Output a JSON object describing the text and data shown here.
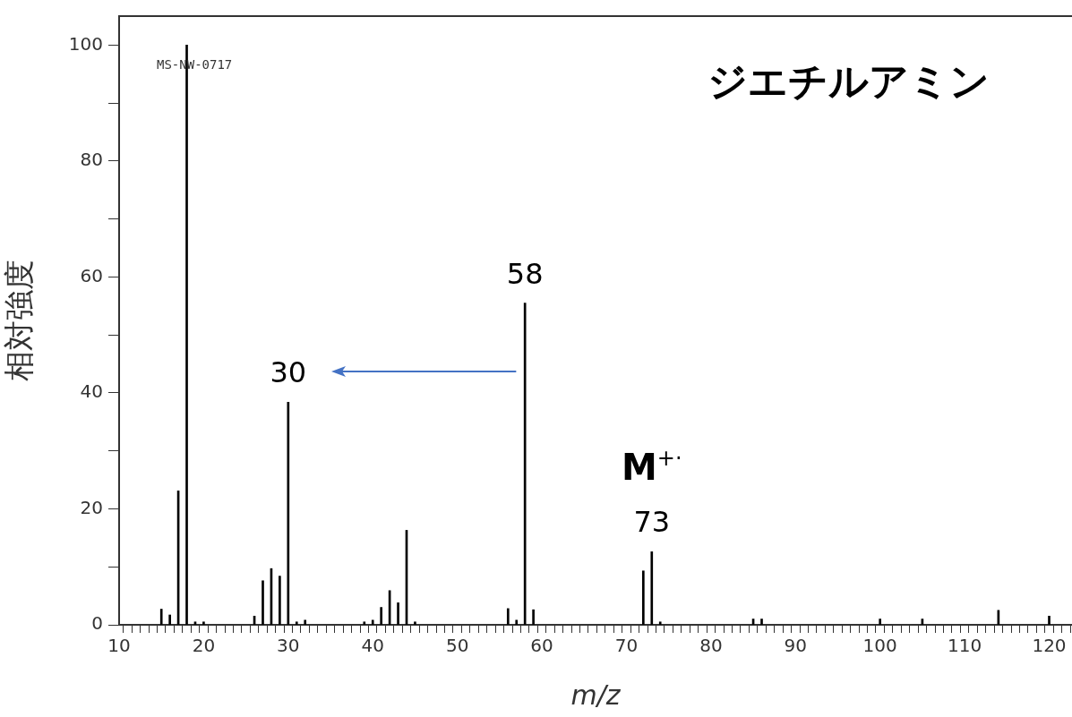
{
  "chart_data": {
    "type": "bar",
    "title": "ジエチルアミン",
    "xlabel": "m/z",
    "ylabel": "相対強度",
    "x": [
      15,
      16,
      17,
      18,
      19,
      20,
      26,
      27,
      28,
      29,
      30,
      31,
      32,
      39,
      40,
      41,
      42,
      43,
      44,
      45,
      56,
      57,
      58,
      59,
      72,
      73,
      74,
      85,
      86,
      100,
      105,
      114,
      120
    ],
    "values": [
      2.7,
      1.7,
      23.1,
      100,
      0.5,
      0.5,
      1.5,
      7.6,
      9.7,
      8.4,
      38.4,
      0.5,
      0.8,
      0.5,
      0.8,
      3,
      5.9,
      3.8,
      16.3,
      0.5,
      2.8,
      0.8,
      55.5,
      2.6,
      9.3,
      12.6,
      0.5,
      1,
      1,
      1,
      1,
      2.5,
      1.5
    ],
    "color": "#000000",
    "xlim": [
      10,
      122.7
    ],
    "xticks": [
      10,
      {
        "value": 11,
        "label": null
      },
      {
        "value": 12,
        "label": null
      },
      {
        "value": 13,
        "label": null
      },
      {
        "value": 14,
        "label": null
      },
      {
        "value": 15,
        "label": null
      },
      {
        "value": 16,
        "label": null
      },
      {
        "value": 17,
        "label": null
      },
      {
        "value": 18,
        "label": null
      },
      {
        "value": 19,
        "label": null
      },
      20,
      {
        "value": 21,
        "label": null
      },
      {
        "value": 22,
        "label": null
      },
      {
        "value": 23,
        "label": null
      },
      {
        "value": 24,
        "label": null
      },
      {
        "value": 25,
        "label": null
      },
      {
        "value": 26,
        "label": null
      },
      {
        "value": 27,
        "label": null
      },
      {
        "value": 28,
        "label": null
      },
      {
        "value": 29,
        "label": null
      },
      30,
      {
        "value": 31,
        "label": null
      },
      {
        "value": 32,
        "label": null
      },
      {
        "value": 33,
        "label": null
      },
      {
        "value": 34,
        "label": null
      },
      {
        "value": 35,
        "label": null
      },
      {
        "value": 36,
        "label": null
      },
      {
        "value": 37,
        "label": null
      },
      {
        "value": 38,
        "label": null
      },
      {
        "value": 39,
        "label": null
      },
      40,
      {
        "value": 41,
        "label": null
      },
      {
        "value": 42,
        "label": null
      },
      {
        "value": 43,
        "label": null
      },
      {
        "value": 44,
        "label": null
      },
      {
        "value": 45,
        "label": null
      },
      {
        "value": 46,
        "label": null
      },
      {
        "value": 47,
        "label": null
      },
      {
        "value": 48,
        "label": null
      },
      {
        "value": 49,
        "label": null
      },
      50,
      {
        "value": 51,
        "label": null
      },
      {
        "value": 52,
        "label": null
      },
      {
        "value": 53,
        "label": null
      },
      {
        "value": 54,
        "label": null
      },
      {
        "value": 55,
        "label": null
      },
      {
        "value": 56,
        "label": null
      },
      {
        "value": 57,
        "label": null
      },
      {
        "value": 58,
        "label": null
      },
      {
        "value": 59,
        "label": null
      },
      60,
      {
        "value": 61,
        "label": null
      },
      {
        "value": 62,
        "label": null
      },
      {
        "value": 63,
        "label": null
      },
      {
        "value": 64,
        "label": null
      },
      {
        "value": 65,
        "label": null
      },
      {
        "value": 66,
        "label": null
      },
      {
        "value": 67,
        "label": null
      },
      {
        "value": 68,
        "label": null
      },
      {
        "value": 69,
        "label": null
      },
      70,
      {
        "value": 71,
        "label": null
      },
      {
        "value": 72,
        "label": null
      },
      {
        "value": 73,
        "label": null
      },
      {
        "value": 74,
        "label": null
      },
      {
        "value": 75,
        "label": null
      },
      {
        "value": 76,
        "label": null
      },
      {
        "value": 77,
        "label": null
      },
      {
        "value": 78,
        "label": null
      },
      {
        "value": 79,
        "label": null
      },
      80,
      {
        "value": 81,
        "label": null
      },
      {
        "value": 82,
        "label": null
      },
      {
        "value": 83,
        "label": null
      },
      {
        "value": 84,
        "label": null
      },
      {
        "value": 85,
        "label": null
      },
      {
        "value": 86,
        "label": null
      },
      {
        "value": 87,
        "label": null
      },
      {
        "value": 88,
        "label": null
      },
      {
        "value": 89,
        "label": null
      },
      90,
      {
        "value": 91,
        "label": null
      },
      {
        "value": 92,
        "label": null
      },
      {
        "value": 93,
        "label": null
      },
      {
        "value": 94,
        "label": null
      },
      {
        "value": 95,
        "label": null
      },
      {
        "value": 96,
        "label": null
      },
      {
        "value": 97,
        "label": null
      },
      {
        "value": 98,
        "label": null
      },
      {
        "value": 99,
        "label": null
      },
      100,
      {
        "value": 101,
        "label": null
      },
      {
        "value": 102,
        "label": null
      },
      {
        "value": 103,
        "label": null
      },
      {
        "value": 104,
        "label": null
      },
      {
        "value": 105,
        "label": null
      },
      {
        "value": 106,
        "label": null
      },
      {
        "value": 107,
        "label": null
      },
      {
        "value": 108,
        "label": null
      },
      {
        "value": 109,
        "label": null
      },
      110,
      {
        "value": 111,
        "label": null
      },
      {
        "value": 112,
        "label": null
      },
      {
        "value": 113,
        "label": null
      },
      {
        "value": 114,
        "label": null
      },
      {
        "value": 115,
        "label": null
      },
      {
        "value": 116,
        "label": null
      },
      {
        "value": 117,
        "label": null
      },
      {
        "value": 118,
        "label": null
      },
      {
        "value": 119,
        "label": null
      },
      120,
      {
        "value": 121,
        "label": null
      },
      {
        "value": 122,
        "label": null
      }
    ],
    "ylim": [
      0,
      105
    ],
    "yticks": [
      0,
      {
        "value": 10,
        "label": null
      },
      20,
      {
        "value": 30,
        "label": null
      },
      40,
      {
        "value": 50,
        "label": null
      },
      60,
      {
        "value": 70,
        "label": null
      },
      80,
      {
        "value": 90,
        "label": null
      },
      100
    ],
    "grid": false,
    "legend": false,
    "annotations": [
      "MS-NW-0717",
      {
        "text": "30",
        "x": 30,
        "y": 38.4
      },
      {
        "text": "58",
        "x": 58,
        "y": 55.5
      },
      {
        "text": "73",
        "x": 73,
        "y": 12.6
      },
      {
        "text": "M$^{+·}$",
        "x": 73,
        "y": 12.6
      }
    ]
  }
}
